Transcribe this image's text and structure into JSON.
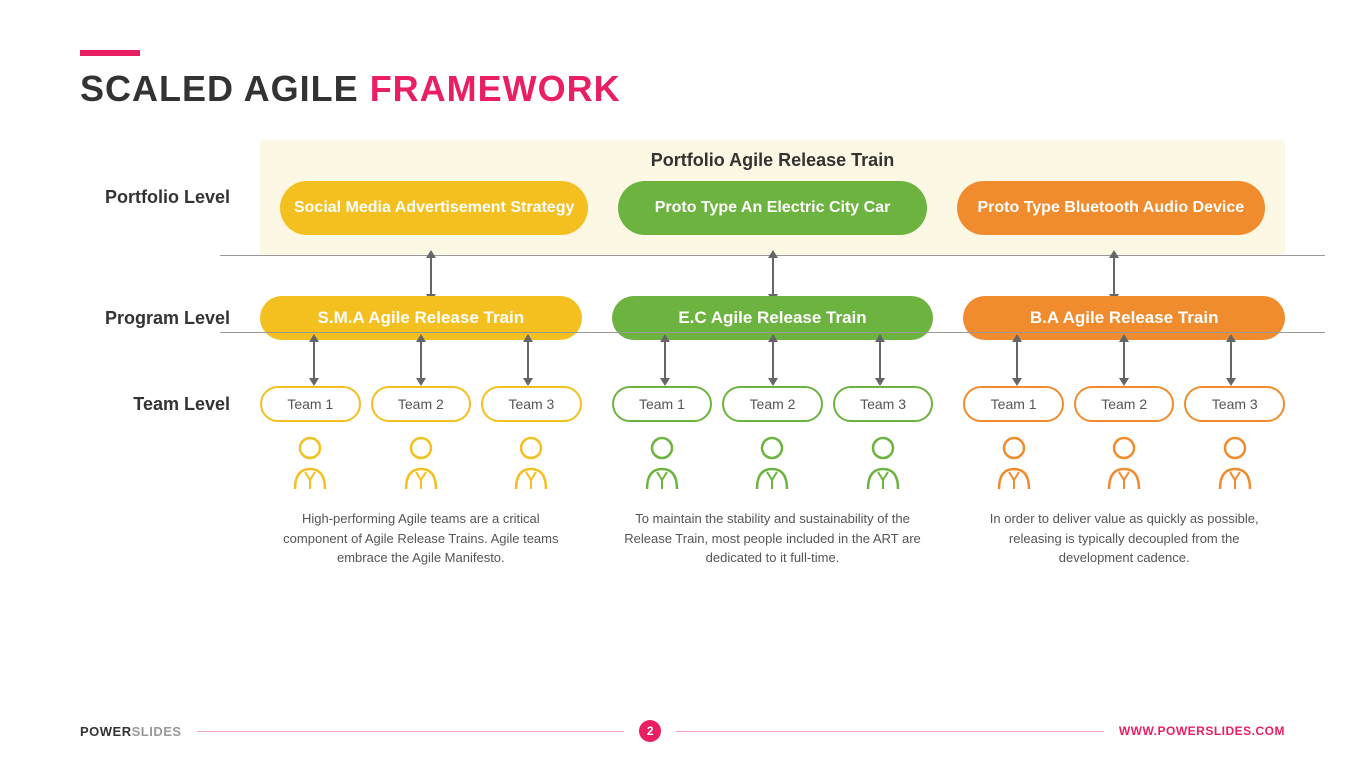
{
  "title": {
    "part1": "SCALED AGILE ",
    "part2": "FRAMEWORK"
  },
  "colors": {
    "accent": "#e91e63",
    "yellow": "#f4c020",
    "green": "#6db33f",
    "orange": "#f08c2e",
    "portfolio_bg": "#fdf8e3",
    "text": "#333333",
    "arrow": "#666666"
  },
  "levels": {
    "portfolio": "Portfolio Level",
    "program": "Program Level",
    "team": "Team Level"
  },
  "portfolio": {
    "title": "Portfolio Agile Release Train",
    "items": [
      {
        "label": "Social Media Advertisement Strategy",
        "color": "#f4c020"
      },
      {
        "label": "Proto Type An Electric City Car",
        "color": "#6db33f"
      },
      {
        "label": "Proto Type Bluetooth Audio Device",
        "color": "#f08c2e"
      }
    ]
  },
  "program": [
    {
      "label": "S.M.A Agile Release Train",
      "color": "#f4c020"
    },
    {
      "label": "E.C Agile Release Train",
      "color": "#6db33f"
    },
    {
      "label": "B.A Agile Release Train",
      "color": "#f08c2e"
    }
  ],
  "teams": [
    {
      "color": "#f4c020",
      "items": [
        "Team 1",
        "Team 2",
        "Team 3"
      ]
    },
    {
      "color": "#6db33f",
      "items": [
        "Team 1",
        "Team 2",
        "Team 3"
      ]
    },
    {
      "color": "#f08c2e",
      "items": [
        "Team 1",
        "Team 2",
        "Team 3"
      ]
    }
  ],
  "descriptions": [
    "High-performing Agile teams are a critical component of Agile Release Trains. Agile teams embrace the Agile Manifesto.",
    "To maintain the stability and sustainability of the Release Train, most people included in the ART are dedicated to it full-time.",
    "In order to deliver value as quickly as possible, releasing is typically decoupled from the development cadence."
  ],
  "footer": {
    "brand1": "POWER",
    "brand2": "SLIDES",
    "page": "2",
    "url": "WWW.POWERSLIDES.COM"
  },
  "layout": {
    "slide_width": 1365,
    "slide_height": 767,
    "title_fontsize": 36,
    "level_label_fontsize": 18,
    "pill_fontsize": 16,
    "team_fontsize": 14,
    "desc_fontsize": 13
  }
}
